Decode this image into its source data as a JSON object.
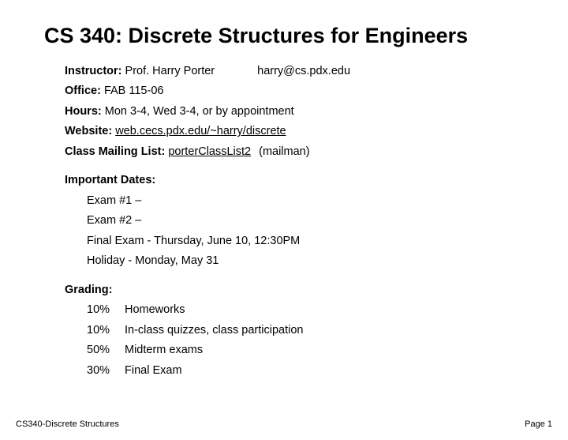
{
  "title": "CS 340: Discrete Structures for Engineers",
  "info": {
    "instructor_label": "Instructor:",
    "instructor_name": " Prof. Harry Porter",
    "instructor_email": "harry@cs.pdx.edu",
    "office_label": "Office:",
    "office_value": " FAB 115-06",
    "hours_label": "Hours:",
    "hours_value": " Mon 3-4, Wed 3-4, or by appointment",
    "website_label": "Website:",
    "website_url": "web.cecs.pdx.edu/~harry/discrete",
    "mailing_label": "Class Mailing List:",
    "mailing_link": "porterClassList2",
    "mailing_note": "(mailman)"
  },
  "dates": {
    "header": "Important Dates:",
    "items": [
      "Exam #1 –",
      "Exam #2 –",
      "Final Exam - Thursday, June 10, 12:30PM",
      "Holiday - Monday, May 31"
    ]
  },
  "grading": {
    "header": "Grading:",
    "rows": [
      {
        "pct": "10%",
        "desc": "Homeworks"
      },
      {
        "pct": "10%",
        "desc": "In-class quizzes, class participation"
      },
      {
        "pct": "50%",
        "desc": "Midterm exams"
      },
      {
        "pct": "30%",
        "desc": "Final Exam"
      }
    ]
  },
  "footer": {
    "left": "CS340-Discrete Structures",
    "right": "Page 1"
  },
  "style": {
    "background_color": "#ffffff",
    "text_color": "#000000",
    "title_fontsize": 27,
    "body_fontsize": 14.5,
    "footer_fontsize": 11
  }
}
